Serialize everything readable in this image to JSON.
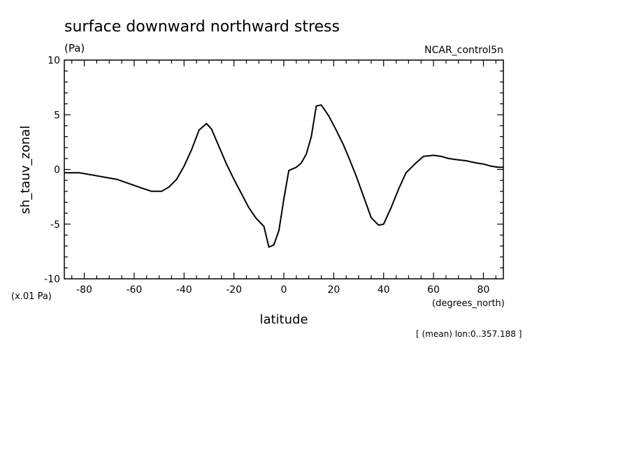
{
  "chart_data": {
    "type": "line",
    "title": "surface downward northward stress",
    "units": "(Pa)",
    "dataset": "NCAR_control5n",
    "ylabel": "sh_tauv_zonal",
    "yscale_note": "(x.01 Pa)",
    "xlabel": "latitude",
    "xunits": "(degrees_north)",
    "footnote": "[ (mean) lon:0..357.188 ]",
    "xlim": [
      -88,
      88
    ],
    "ylim": [
      -10,
      10
    ],
    "x_ticks": [
      "-80",
      "-60",
      "-40",
      "-20",
      "0",
      "20",
      "40",
      "60",
      "80"
    ],
    "y_ticks": [
      "10",
      "5",
      "0",
      "-5",
      "-10"
    ],
    "x": [
      -88,
      -82,
      -77,
      -72,
      -67,
      -62,
      -57,
      -53,
      -49,
      -46,
      -43,
      -40,
      -37,
      -34,
      -31,
      -29,
      -26,
      -23,
      -20,
      -17,
      -14,
      -11,
      -8,
      -6,
      -4,
      -2,
      0,
      2,
      5,
      7,
      9,
      11,
      13,
      15,
      18,
      21,
      24,
      26,
      29,
      32,
      35,
      38,
      40,
      43,
      46,
      49,
      53,
      56,
      60,
      63,
      66,
      69,
      73,
      77,
      80,
      83,
      86,
      88
    ],
    "y": [
      -0.3,
      -0.3,
      -0.5,
      -0.7,
      -0.9,
      -1.3,
      -1.7,
      -2.0,
      -2.0,
      -1.6,
      -0.9,
      0.3,
      1.8,
      3.6,
      4.2,
      3.7,
      2.1,
      0.5,
      -0.9,
      -2.2,
      -3.5,
      -4.5,
      -5.2,
      -7.1,
      -6.9,
      -5.6,
      -2.7,
      -0.1,
      0.2,
      0.6,
      1.4,
      3.0,
      5.8,
      5.9,
      4.9,
      3.6,
      2.2,
      1.1,
      -0.6,
      -2.5,
      -4.4,
      -5.1,
      -5.0,
      -3.5,
      -1.8,
      -0.3,
      0.6,
      1.2,
      1.3,
      1.2,
      1.0,
      0.9,
      0.8,
      0.6,
      0.5,
      0.3,
      0.2,
      0.2
    ],
    "grid": false,
    "legend": "none",
    "line_color": "#000000"
  }
}
